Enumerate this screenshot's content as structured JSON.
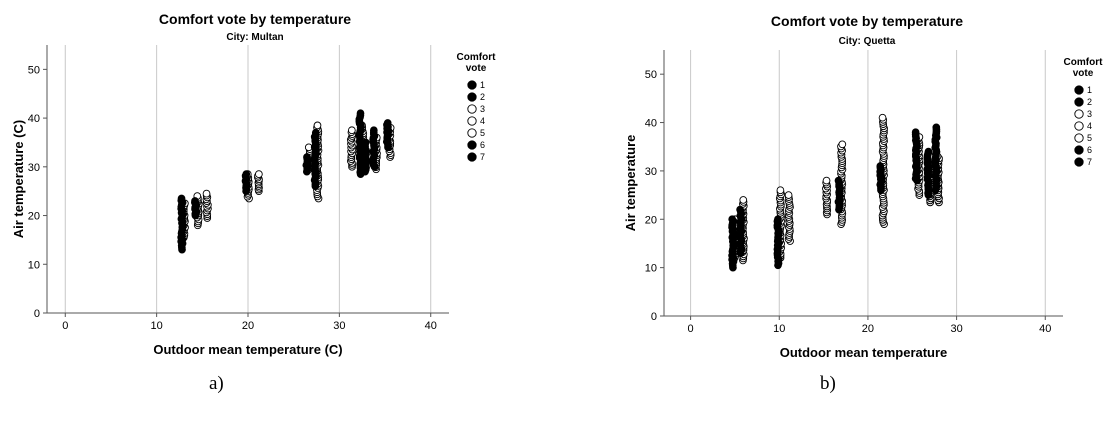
{
  "chart_data": [
    {
      "type": "scatter",
      "title": "Comfort vote by temperature",
      "subtitle": "City: Multan",
      "xlabel": "Outdoor mean temperature (C)",
      "ylabel": "Air temperature (C)",
      "xlim": [
        -2,
        42
      ],
      "ylim": [
        0,
        55
      ],
      "xticks": [
        0,
        10,
        20,
        30,
        40
      ],
      "yticks": [
        0,
        10,
        20,
        30,
        40,
        50
      ],
      "grid": "x-major",
      "legend_title": "Comfort vote",
      "legend_position": "right",
      "legend": [
        {
          "label": "1",
          "marker": "filled"
        },
        {
          "label": "2",
          "marker": "filled"
        },
        {
          "label": "3",
          "marker": "open"
        },
        {
          "label": "4",
          "marker": "open"
        },
        {
          "label": "5",
          "marker": "open"
        },
        {
          "label": "6",
          "marker": "filled"
        },
        {
          "label": "7",
          "marker": "filled"
        }
      ],
      "clusters": [
        {
          "x": 12.9,
          "filled": [
            13,
            23.5
          ],
          "open": [
            15.5,
            22.5
          ]
        },
        {
          "x": 14.4,
          "filled": [
            20,
            23
          ],
          "open": [
            18,
            24
          ]
        },
        {
          "x": 15.4,
          "filled": null,
          "open": [
            19.5,
            24.5
          ]
        },
        {
          "x": 19.9,
          "filled": [
            25,
            28.5
          ],
          "open": [
            23.5,
            28.5
          ]
        },
        {
          "x": 21.0,
          "filled": null,
          "open": [
            25,
            28.5
          ]
        },
        {
          "x": 26.6,
          "filled": [
            29,
            32
          ],
          "open": [
            29.5,
            34
          ]
        },
        {
          "x": 27.5,
          "filled": [
            26,
            37
          ],
          "open": [
            23.5,
            38.5
          ]
        },
        {
          "x": 31.2,
          "filled": null,
          "open": [
            30,
            37.5
          ]
        },
        {
          "x": 32.4,
          "filled": [
            28.5,
            41
          ],
          "open": [
            29,
            38.5
          ]
        },
        {
          "x": 33.0,
          "filled": [
            29,
            35
          ],
          "open": null
        },
        {
          "x": 33.9,
          "filled": [
            30,
            37.5
          ],
          "open": [
            29.5,
            36
          ]
        },
        {
          "x": 35.4,
          "filled": [
            34,
            39
          ],
          "open": [
            32,
            38
          ]
        }
      ]
    },
    {
      "type": "scatter",
      "title": "Comfort vote by temperature",
      "subtitle": "City: Quetta",
      "xlabel": "Outdoor mean temperature",
      "ylabel": "Air temperature",
      "xlim": [
        -3,
        42
      ],
      "ylim": [
        0,
        55
      ],
      "xticks": [
        0,
        10,
        20,
        30,
        40
      ],
      "yticks": [
        0,
        10,
        20,
        30,
        40,
        50
      ],
      "grid": "x-major",
      "legend_title": "Comfort vote",
      "legend_position": "right",
      "legend": [
        {
          "label": "1",
          "marker": "filled"
        },
        {
          "label": "2",
          "marker": "filled"
        },
        {
          "label": "3",
          "marker": "open"
        },
        {
          "label": "4",
          "marker": "open"
        },
        {
          "label": "5",
          "marker": "open"
        },
        {
          "label": "6",
          "marker": "filled"
        },
        {
          "label": "7",
          "marker": "filled"
        }
      ],
      "clusters": [
        {
          "x": 4.9,
          "filled": [
            10,
            20
          ],
          "open": [
            12,
            20
          ]
        },
        {
          "x": 5.8,
          "filled": [
            13,
            22
          ],
          "open": [
            11.5,
            24
          ]
        },
        {
          "x": 10.0,
          "filled": [
            10.5,
            20
          ],
          "open": [
            12,
            26
          ]
        },
        {
          "x": 11.0,
          "filled": null,
          "open": [
            15.5,
            25
          ]
        },
        {
          "x": 15.2,
          "filled": null,
          "open": [
            21,
            28
          ]
        },
        {
          "x": 16.9,
          "filled": [
            22,
            28
          ],
          "open": [
            19,
            35.5
          ]
        },
        {
          "x": 21.6,
          "filled": [
            26,
            31
          ],
          "open": [
            19,
            41
          ]
        },
        {
          "x": 25.6,
          "filled": [
            28,
            38
          ],
          "open": [
            25,
            37
          ]
        },
        {
          "x": 26.9,
          "filled": [
            25,
            34
          ],
          "open": [
            23.5,
            33
          ]
        },
        {
          "x": 27.8,
          "filled": [
            26,
            39
          ],
          "open": [
            23.5,
            33
          ]
        }
      ]
    }
  ],
  "captions": {
    "a": "a)",
    "b": "b)"
  }
}
